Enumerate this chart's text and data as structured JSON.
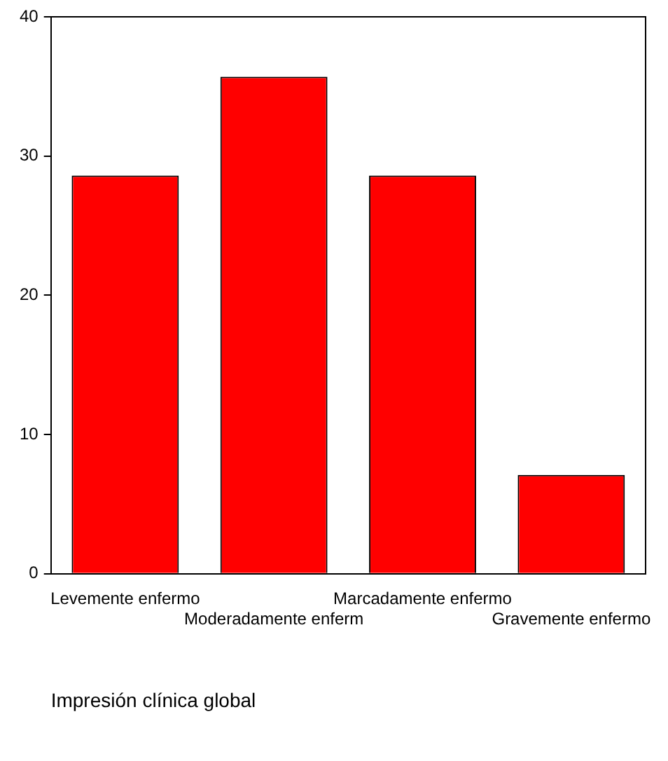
{
  "chart_data": {
    "type": "bar",
    "xlabel": "Impresión clínica global",
    "categories": [
      "Levemente enfermo",
      "Moderadamente enferm",
      "Marcadamente enfermo",
      "Gravemente enfermo"
    ],
    "values": [
      28.6,
      35.7,
      28.6,
      7.1
    ],
    "color": "#ff0000",
    "ylim": [
      0,
      40
    ],
    "yticks": [
      0,
      10,
      20,
      30,
      40
    ],
    "grid": false
  }
}
